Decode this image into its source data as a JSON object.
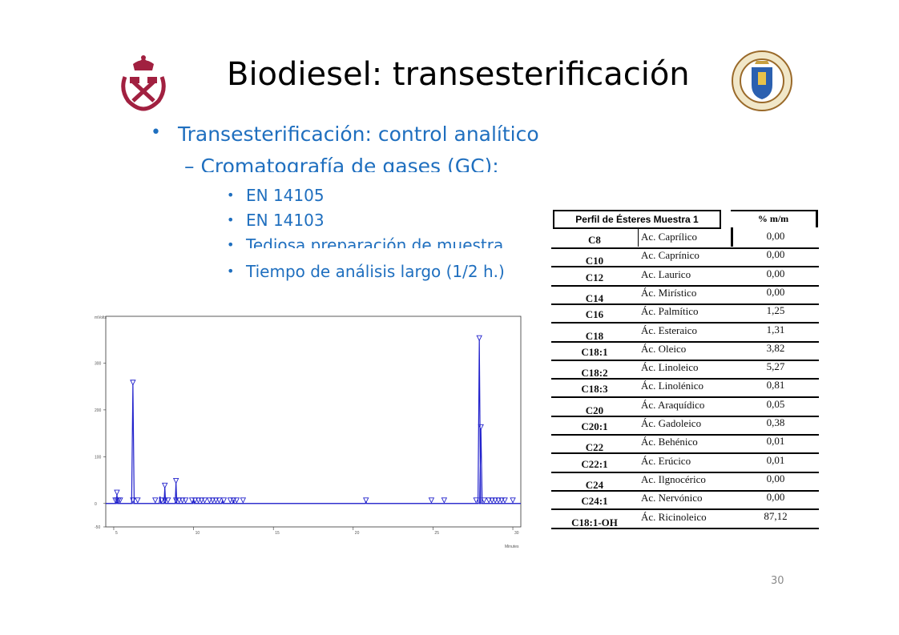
{
  "slide": {
    "title": "Biodiesel: transesterificación",
    "bullet1": "Transesterificación: control analítico",
    "bullet2": "Cromatografía de gases (GC):",
    "sub_bullets": [
      "EN 14105",
      "EN 14103",
      "Tediosa preparación de muestra",
      "Tiempo de análisis largo (1/2 h.)"
    ],
    "page_number": "30",
    "logos": [
      "mining-school-crest",
      "upm-university-seal"
    ]
  },
  "table": {
    "header_left": "Perfil de Ésteres Muestra 1",
    "header_right": "% m/m",
    "rows": [
      {
        "code": "C8",
        "name": "Ac. Caprílico",
        "value": "0,00"
      },
      {
        "code": "C10",
        "name": "Ac. Caprínico",
        "value": "0,00"
      },
      {
        "code": "C12",
        "name": "Ac. Laurico",
        "value": "0,00"
      },
      {
        "code": "C14",
        "name": "Ác. Mirístico",
        "value": "0,00"
      },
      {
        "code": "C16",
        "name": "Ác. Palmítico",
        "value": "1,25"
      },
      {
        "code": "C18",
        "name": "Ác. Esteraico",
        "value": "1,31"
      },
      {
        "code": "C18:1",
        "name": "Ác. Oleico",
        "value": "3,82"
      },
      {
        "code": "C18:2",
        "name": "Ác. Linoleico",
        "value": "5,27"
      },
      {
        "code": "C18:3",
        "name": "Ác. Linolénico",
        "value": "0,81"
      },
      {
        "code": "C20",
        "name": "Ác. Araquídico",
        "value": "0,05"
      },
      {
        "code": "C20:1",
        "name": "Ác. Gadoleico",
        "value": "0,38"
      },
      {
        "code": "C22",
        "name": "Ác. Behénico",
        "value": "0,01"
      },
      {
        "code": "C22:1",
        "name": "Ác. Erúcico",
        "value": "0,01"
      },
      {
        "code": "C24",
        "name": "Ac. Ilgnocérico",
        "value": "0,00"
      },
      {
        "code": "C24:1",
        "name": "Ac. Nervónico",
        "value": "0,00"
      },
      {
        "code": "C18:1-OH",
        "name": "Ác. Ricinoleico",
        "value": "87,12"
      }
    ]
  },
  "chart_data": {
    "type": "line",
    "ylabel": "mVolts",
    "xlabel": "Minutes",
    "y_ticks": [
      "300",
      "200",
      "100",
      "0",
      "-50"
    ],
    "x_ticks": [
      "5",
      "10",
      "15",
      "20",
      "25",
      "30"
    ],
    "xlim": [
      4.5,
      30.5
    ],
    "ylim": [
      -50,
      400
    ],
    "peaks": [
      {
        "x": 5.2,
        "y": 20
      },
      {
        "x": 6.2,
        "y": 255
      },
      {
        "x": 7.9,
        "y": 15
      },
      {
        "x": 8.2,
        "y": 35
      },
      {
        "x": 8.9,
        "y": 45
      },
      {
        "x": 10.0,
        "y": 8
      },
      {
        "x": 11.8,
        "y": 5
      },
      {
        "x": 12.5,
        "y": 6
      },
      {
        "x": 20.8,
        "y": 3
      },
      {
        "x": 27.9,
        "y": 350
      },
      {
        "x": 28.0,
        "y": 160
      }
    ],
    "markers_x": [
      5.1,
      5.2,
      5.3,
      5.4,
      6.2,
      6.5,
      7.6,
      8.0,
      8.2,
      8.4,
      8.9,
      9.1,
      9.3,
      9.5,
      9.9,
      10.1,
      10.3,
      10.5,
      10.7,
      11.0,
      11.2,
      11.4,
      11.6,
      11.9,
      12.3,
      12.5,
      12.7,
      13.1,
      20.8,
      24.9,
      25.7,
      27.7,
      28.2,
      28.5,
      28.7,
      28.9,
      29.1,
      29.3,
      29.5,
      30.0
    ]
  }
}
